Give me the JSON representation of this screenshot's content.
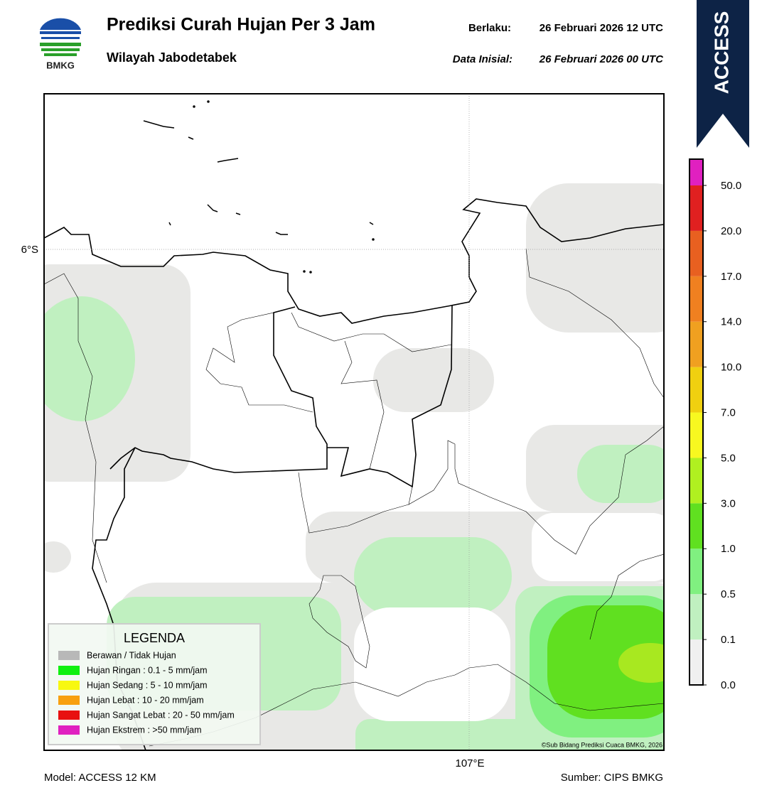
{
  "header": {
    "logo_text": "BMKG",
    "title": "Prediksi Curah Hujan Per 3 Jam",
    "subtitle": "Wilayah Jabodetabek",
    "valid_label": "Berlaku:",
    "valid_value": "26 Februari 2026 12 UTC",
    "init_label": "Data Inisial:",
    "init_value": "26 Februari 2026 00 UTC"
  },
  "badge": "ACCESS",
  "map": {
    "lat_label": "6°S",
    "lon_label": "107°E",
    "credit": "©Sub Bidang Prediksi Cuaca BMKG, 2026"
  },
  "legend": {
    "title": "LEGENDA",
    "items": [
      {
        "label": "Berawan / Tidak Hujan",
        "color": "#b8b8b8"
      },
      {
        "label": "Hujan Ringan : 0.1 - 5 mm/jam",
        "color": "#10f010"
      },
      {
        "label": "Hujan Sedang : 5 - 10 mm/jam",
        "color": "#f8f810"
      },
      {
        "label": "Hujan Lebat : 10 - 20 mm/jam",
        "color": "#f8a010"
      },
      {
        "label": "Hujan Sangat Lebat : 20 - 50 mm/jam",
        "color": "#e81010"
      },
      {
        "label": "Hujan Ekstrem : >50 mm/jam",
        "color": "#e020c0"
      }
    ]
  },
  "colorbar": {
    "ticks": [
      "0.0",
      "0.1",
      "0.5",
      "1.0",
      "3.0",
      "5.0",
      "7.0",
      "10.0",
      "14.0",
      "17.0",
      "20.0",
      "50.0"
    ],
    "colors": [
      "#f0f0f0",
      "#c0f0c0",
      "#80f080",
      "#60e020",
      "#b0f020",
      "#f8f820",
      "#f0d010",
      "#f0a020",
      "#f08020",
      "#e86020",
      "#e02020",
      "#e020c0"
    ]
  },
  "footer": {
    "model": "Model: ACCESS 12 KM",
    "source": "Sumber: CIPS BMKG"
  }
}
